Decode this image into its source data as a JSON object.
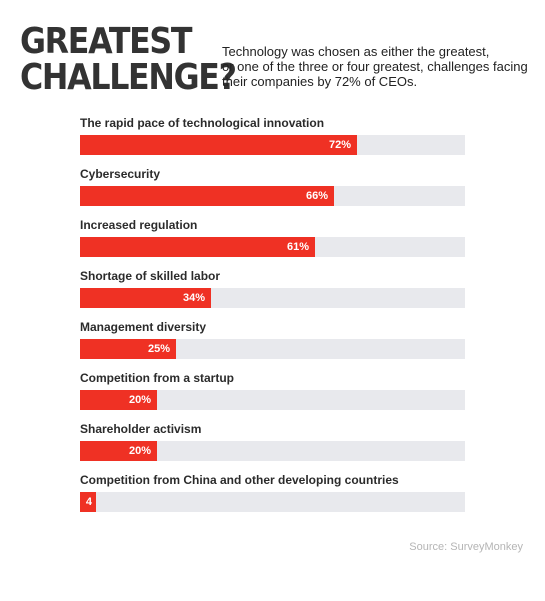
{
  "header": {
    "title_lines": [
      "GREATEST",
      "CHALLENGE?"
    ],
    "subtitle_lines": [
      "Technology was chosen as either the greatest,",
      "or one of the three or four greatest, challenges facing",
      "their companies by 72% of CEOs."
    ]
  },
  "chart_data": {
    "type": "bar",
    "orientation": "horizontal",
    "title": "GREATEST CHALLENGE?",
    "categories": [
      "The rapid pace of technological innovation",
      "Cybersecurity",
      "Increased regulation",
      "Shortage of skilled labor",
      "Management diversity",
      "Competition from a startup",
      "Shareholder activism",
      "Competition from China and other developing countries"
    ],
    "values": [
      72,
      66,
      61,
      34,
      25,
      20,
      20,
      4
    ],
    "value_labels": [
      "72%",
      "66%",
      "61%",
      "34%",
      "25%",
      "20%",
      "20%",
      "4"
    ],
    "xlim": [
      0,
      100
    ],
    "grid": false,
    "bar_color": "#ef3124",
    "track_color": "#e8e9ed"
  },
  "footer": {
    "source": "Source: SurveyMonkey"
  }
}
